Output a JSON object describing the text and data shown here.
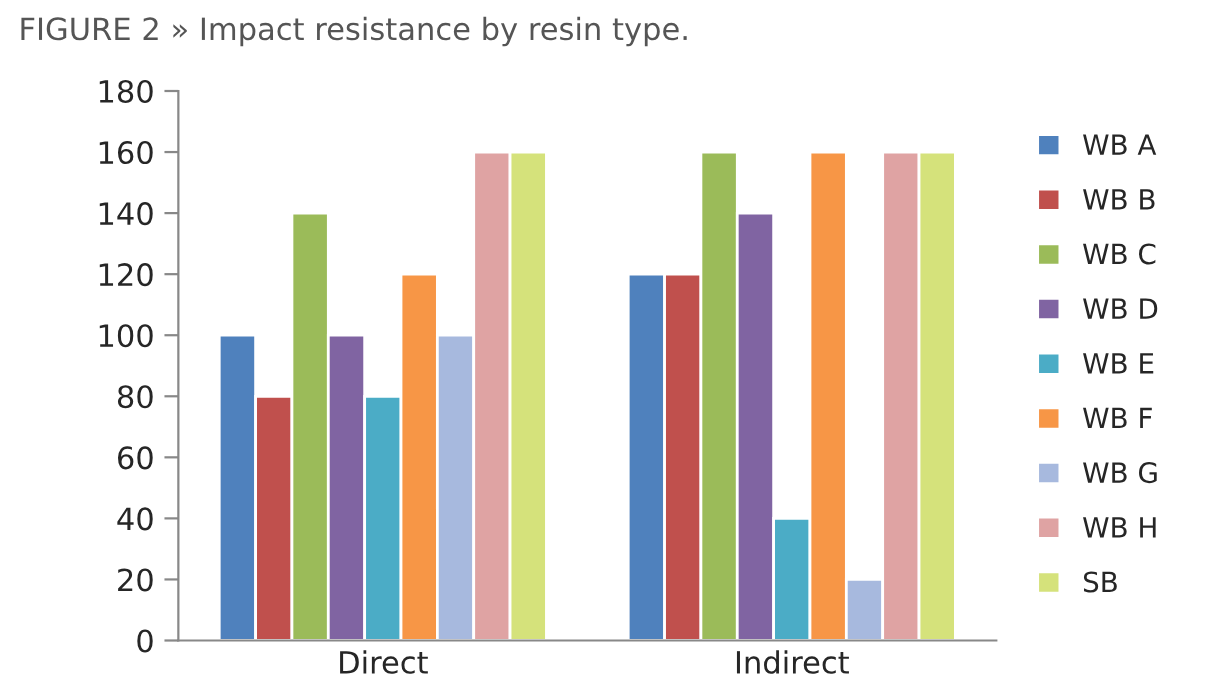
{
  "chart_data": {
    "type": "bar",
    "title": "FIGURE 2 » Impact resistance by resin type.",
    "categories": [
      "Direct",
      "Indirect"
    ],
    "series": [
      {
        "name": "WB A",
        "color": "#4f81bd",
        "values": [
          100,
          120
        ]
      },
      {
        "name": "WB B",
        "color": "#c0504d",
        "values": [
          80,
          120
        ]
      },
      {
        "name": "WB C",
        "color": "#9bbb59",
        "values": [
          140,
          160
        ]
      },
      {
        "name": "WB D",
        "color": "#8064a2",
        "values": [
          100,
          140
        ]
      },
      {
        "name": "WB E",
        "color": "#4bacc6",
        "values": [
          80,
          40
        ]
      },
      {
        "name": "WB F",
        "color": "#f79646",
        "values": [
          120,
          160
        ]
      },
      {
        "name": "WB G",
        "color": "#a7b9de",
        "values": [
          100,
          20
        ]
      },
      {
        "name": "WB H",
        "color": "#dfa3a3",
        "values": [
          160,
          160
        ]
      },
      {
        "name": "SB",
        "color": "#d5e27b",
        "values": [
          160,
          160
        ]
      }
    ],
    "ylim": [
      0,
      180
    ],
    "yticks": [
      0,
      20,
      40,
      60,
      80,
      100,
      120,
      140,
      160,
      180
    ],
    "grid": false,
    "legend": "right"
  }
}
